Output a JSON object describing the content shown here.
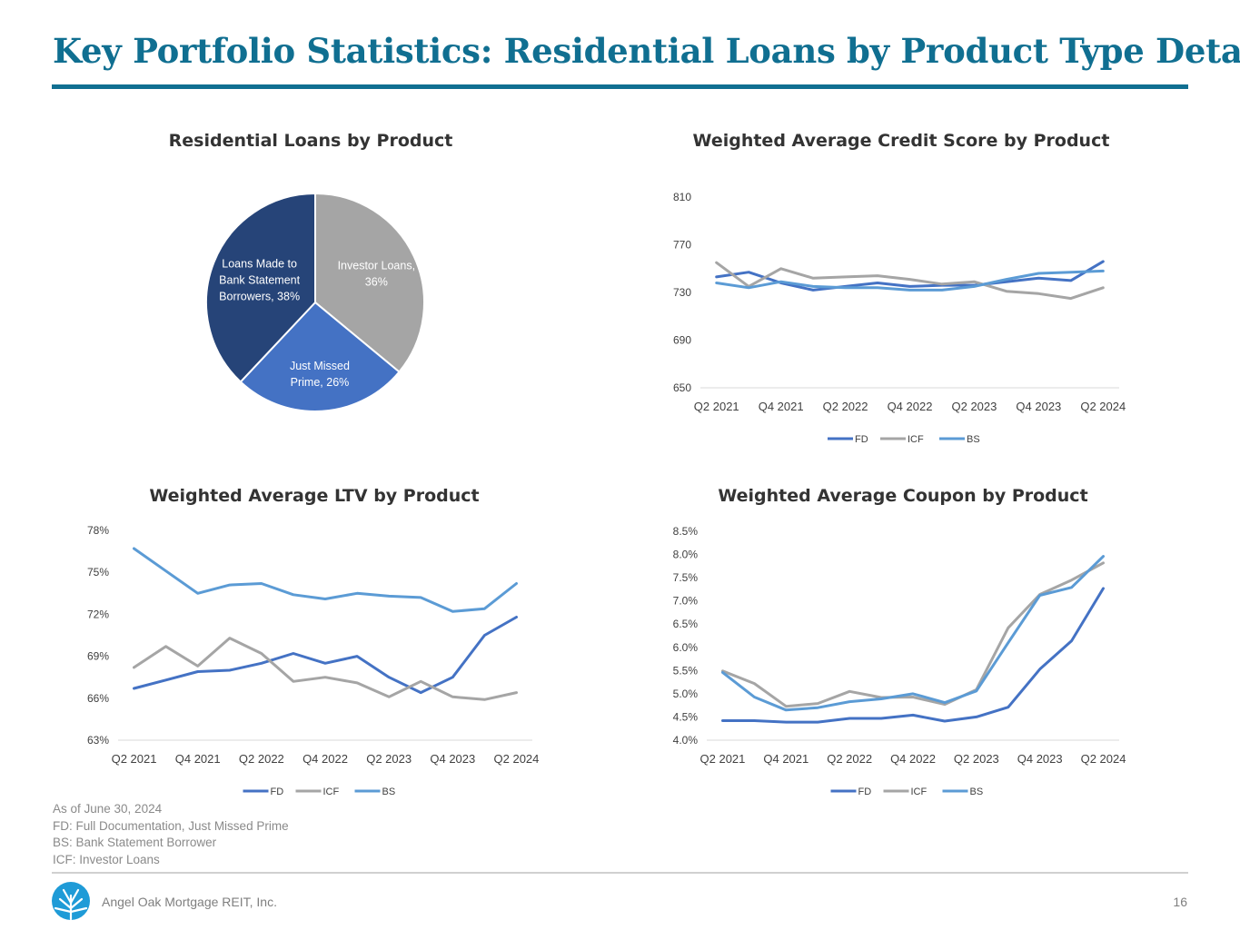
{
  "page": {
    "title": "Key Portfolio Statistics: Residential Loans by Product Type Detail",
    "notes": [
      "As of June 30, 2024",
      "FD: Full Documentation, Just Missed Prime",
      "BS: Bank Statement Borrower",
      "ICF: Investor Loans"
    ],
    "company": "Angel Oak Mortgage REIT, Inc.",
    "page_number": "16",
    "logo_icon": "angel-oak-tree-logo",
    "colors": {
      "title": "#106f91",
      "fd": "#4472c4",
      "icf": "#a5a5a5",
      "bs": "#5b9bd5",
      "pie_bs": "#264478"
    }
  },
  "chart_data": [
    {
      "id": "pie",
      "type": "pie",
      "title": "Residential Loans by Product",
      "slices": [
        {
          "label_lines": [
            "Investor Loans,",
            "36%"
          ],
          "name": "Investor Loans",
          "value": 36,
          "color": "#a5a5a5"
        },
        {
          "label_lines": [
            "Just Missed",
            "Prime, 26%"
          ],
          "name": "Just Missed Prime",
          "value": 26,
          "color": "#4472c4"
        },
        {
          "label_lines": [
            "Loans Made to",
            "Bank Statement",
            "Borrowers, 38%"
          ],
          "name": "Loans Made to Bank Statement Borrowers",
          "value": 38,
          "color": "#264478"
        }
      ]
    },
    {
      "id": "credit",
      "type": "line",
      "title": "Weighted Average Credit Score by Product",
      "x": [
        "Q2 2021",
        "Q3 2021",
        "Q4 2021",
        "Q1 2022",
        "Q2 2022",
        "Q3 2022",
        "Q4 2022",
        "Q1 2023",
        "Q2 2023",
        "Q3 2023",
        "Q4 2023",
        "Q1 2024",
        "Q2 2024"
      ],
      "x_tick_labels": [
        "Q2 2021",
        "Q4 2021",
        "Q2 2022",
        "Q4 2022",
        "Q2 2023",
        "Q4 2023",
        "Q2 2024"
      ],
      "ylim": [
        650,
        810
      ],
      "y_ticks": [
        650,
        690,
        730,
        770,
        810
      ],
      "y_tick_labels": [
        "650",
        "690",
        "730",
        "770",
        "810"
      ],
      "series": [
        {
          "name": "FD",
          "color": "#4472c4",
          "values": [
            743,
            747,
            738,
            732,
            735,
            738,
            735,
            736,
            736,
            739,
            742,
            740,
            756
          ]
        },
        {
          "name": "ICF",
          "color": "#a5a5a5",
          "values": [
            755,
            735,
            750,
            742,
            743,
            744,
            741,
            737,
            739,
            731,
            729,
            725,
            734
          ]
        },
        {
          "name": "BS",
          "color": "#5b9bd5",
          "values": [
            738,
            734,
            739,
            735,
            734,
            734,
            732,
            732,
            735,
            741,
            746,
            747,
            748
          ]
        }
      ]
    },
    {
      "id": "ltv",
      "type": "line",
      "title": "Weighted Average LTV by Product",
      "x": [
        "Q2 2021",
        "Q3 2021",
        "Q4 2021",
        "Q1 2022",
        "Q2 2022",
        "Q3 2022",
        "Q4 2022",
        "Q1 2023",
        "Q2 2023",
        "Q3 2023",
        "Q4 2023",
        "Q1 2024",
        "Q2 2024"
      ],
      "x_tick_labels": [
        "Q2 2021",
        "Q4 2021",
        "Q2 2022",
        "Q4 2022",
        "Q2 2023",
        "Q4 2023",
        "Q2 2024"
      ],
      "ylim": [
        63,
        78
      ],
      "y_ticks": [
        63,
        66,
        69,
        72,
        75,
        78
      ],
      "y_tick_labels": [
        "63%",
        "66%",
        "69%",
        "72%",
        "75%",
        "78%"
      ],
      "series": [
        {
          "name": "FD",
          "color": "#4472c4",
          "values": [
            66.7,
            67.3,
            67.9,
            68.0,
            68.5,
            69.2,
            68.5,
            69.0,
            67.5,
            66.4,
            67.5,
            70.5,
            71.8
          ]
        },
        {
          "name": "ICF",
          "color": "#a5a5a5",
          "values": [
            68.2,
            69.7,
            68.3,
            70.3,
            69.2,
            67.2,
            67.5,
            67.1,
            66.1,
            67.2,
            66.1,
            65.9,
            66.4
          ]
        },
        {
          "name": "BS",
          "color": "#5b9bd5",
          "values": [
            76.7,
            75.1,
            73.5,
            74.1,
            74.2,
            73.4,
            73.1,
            73.5,
            73.3,
            73.2,
            72.2,
            72.4,
            74.2
          ]
        }
      ]
    },
    {
      "id": "coupon",
      "type": "line",
      "title": "Weighted Average Coupon by Product",
      "x": [
        "Q2 2021",
        "Q3 2021",
        "Q4 2021",
        "Q1 2022",
        "Q2 2022",
        "Q3 2022",
        "Q4 2022",
        "Q1 2023",
        "Q2 2023",
        "Q3 2023",
        "Q4 2023",
        "Q1 2024",
        "Q2 2024"
      ],
      "x_tick_labels": [
        "Q2 2021",
        "Q4 2021",
        "Q2 2022",
        "Q4 2022",
        "Q2 2023",
        "Q4 2023",
        "Q2 2024"
      ],
      "ylim": [
        4.0,
        8.5
      ],
      "y_ticks": [
        4.0,
        4.5,
        5.0,
        5.5,
        6.0,
        6.5,
        7.0,
        7.5,
        8.0,
        8.5
      ],
      "y_tick_labels": [
        "4.0%",
        "4.5%",
        "5.0%",
        "5.5%",
        "6.0%",
        "6.5%",
        "7.0%",
        "7.5%",
        "8.0%",
        "8.5%"
      ],
      "series": [
        {
          "name": "FD",
          "color": "#4472c4",
          "values": [
            4.42,
            4.42,
            4.39,
            4.39,
            4.47,
            4.47,
            4.54,
            4.41,
            4.5,
            4.71,
            5.53,
            6.14,
            7.27
          ]
        },
        {
          "name": "ICF",
          "color": "#a5a5a5",
          "values": [
            5.49,
            5.22,
            4.73,
            4.79,
            5.05,
            4.92,
            4.93,
            4.77,
            5.09,
            6.42,
            7.14,
            7.45,
            7.82
          ]
        },
        {
          "name": "BS",
          "color": "#5b9bd5",
          "values": [
            5.46,
            4.93,
            4.65,
            4.7,
            4.83,
            4.89,
            5.0,
            4.81,
            5.06,
            6.1,
            7.12,
            7.29,
            7.96
          ]
        }
      ]
    }
  ]
}
